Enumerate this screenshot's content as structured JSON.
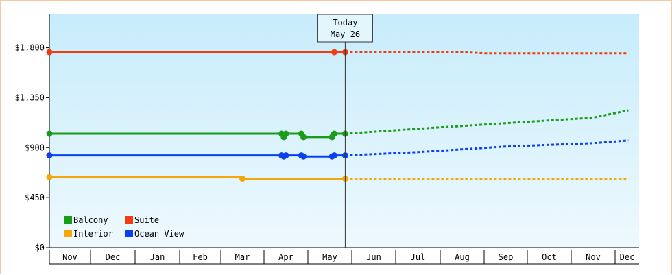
{
  "chart_data": {
    "type": "line",
    "title": "",
    "xlabel": "",
    "ylabel": "",
    "x_unit": "month",
    "month_ticks": [
      "Nov",
      "Dec",
      "Jan",
      "Feb",
      "Mar",
      "Apr",
      "May",
      "Jun",
      "Jul",
      "Aug",
      "Sep",
      "Oct",
      "Nov",
      "Dec"
    ],
    "y_ticks": [
      0,
      450,
      900,
      1350,
      1800
    ],
    "y_tick_labels": [
      "$0",
      "$450",
      "$900",
      "$1,350",
      "$1,800"
    ],
    "ylim": [
      0,
      2100
    ],
    "grid": false,
    "legend_position": "bottom-left",
    "today_marker": {
      "line1": "Today",
      "line2": "May 26",
      "x": 6.85
    },
    "series": [
      {
        "name": "Balcony",
        "color": "#1a9c1a",
        "history": [
          [
            0,
            1025
          ],
          [
            5.4,
            1025
          ],
          [
            5.45,
            995
          ],
          [
            5.5,
            1025
          ],
          [
            5.85,
            1025
          ],
          [
            5.9,
            995
          ],
          [
            6.55,
            995
          ],
          [
            6.6,
            1025
          ],
          [
            6.85,
            1025
          ]
        ],
        "markers": [
          [
            0,
            1025
          ],
          [
            5.4,
            1025
          ],
          [
            5.45,
            995
          ],
          [
            5.5,
            1025
          ],
          [
            5.85,
            1025
          ],
          [
            5.9,
            995
          ],
          [
            6.55,
            995
          ],
          [
            6.6,
            1025
          ],
          [
            6.85,
            1025
          ]
        ],
        "forecast": [
          [
            6.85,
            1025
          ],
          [
            8.5,
            1070
          ],
          [
            10.5,
            1120
          ],
          [
            12.5,
            1170
          ],
          [
            13.55,
            1235
          ]
        ]
      },
      {
        "name": "Suite",
        "color": "#f03c10",
        "history": [
          [
            0,
            1760
          ],
          [
            6.6,
            1760
          ],
          [
            6.85,
            1760
          ]
        ],
        "markers": [
          [
            0,
            1760
          ],
          [
            6.6,
            1760
          ],
          [
            6.85,
            1760
          ]
        ],
        "forecast": [
          [
            6.85,
            1760
          ],
          [
            9.5,
            1760
          ],
          [
            10.0,
            1750
          ],
          [
            13.55,
            1750
          ]
        ]
      },
      {
        "name": "Interior",
        "color": "#f5a60a",
        "history": [
          [
            0,
            635
          ],
          [
            4.45,
            635
          ],
          [
            4.5,
            620
          ],
          [
            6.85,
            620
          ]
        ],
        "markers": [
          [
            0,
            635
          ],
          [
            4.5,
            620
          ],
          [
            6.85,
            620
          ]
        ],
        "forecast": [
          [
            6.85,
            620
          ],
          [
            13.55,
            620
          ]
        ]
      },
      {
        "name": "Ocean View",
        "color": "#0a40f0",
        "history": [
          [
            0,
            830
          ],
          [
            5.4,
            830
          ],
          [
            5.45,
            820
          ],
          [
            5.5,
            830
          ],
          [
            5.85,
            830
          ],
          [
            5.9,
            820
          ],
          [
            6.55,
            820
          ],
          [
            6.6,
            830
          ],
          [
            6.85,
            830
          ]
        ],
        "markers": [
          [
            0,
            830
          ],
          [
            5.4,
            830
          ],
          [
            5.45,
            820
          ],
          [
            5.5,
            830
          ],
          [
            5.85,
            830
          ],
          [
            5.9,
            820
          ],
          [
            6.55,
            820
          ],
          [
            6.6,
            830
          ],
          [
            6.85,
            830
          ]
        ],
        "forecast": [
          [
            6.85,
            830
          ],
          [
            8.5,
            860
          ],
          [
            10.5,
            910
          ],
          [
            12.5,
            940
          ],
          [
            13.55,
            965
          ]
        ]
      }
    ]
  }
}
